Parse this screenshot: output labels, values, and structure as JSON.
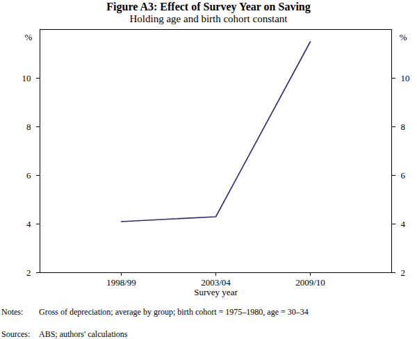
{
  "chart_data": {
    "type": "line",
    "title": "Figure A3: Effect of Survey Year on Saving",
    "subtitle": "Holding age and birth cohort constant",
    "xlabel": "Survey year",
    "ylabel": "%",
    "categories": [
      "1998/99",
      "2003/04",
      "2009/10"
    ],
    "values": [
      4.1,
      4.3,
      11.5
    ],
    "color": "#2e2a6b",
    "ylim": [
      2,
      12
    ],
    "yticks": [
      2,
      4,
      6,
      8,
      10
    ],
    "grid": false,
    "notes_label": "Notes:",
    "notes": "Gross of depreciation; average by group; birth cohort = 1975–1980, age = 30–34",
    "sources_label": "Sources:",
    "sources": "ABS; authors' calculations"
  }
}
